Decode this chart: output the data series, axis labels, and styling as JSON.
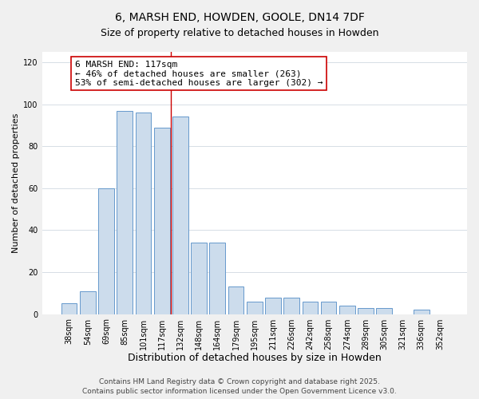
{
  "title": "6, MARSH END, HOWDEN, GOOLE, DN14 7DF",
  "subtitle": "Size of property relative to detached houses in Howden",
  "xlabel": "Distribution of detached houses by size in Howden",
  "ylabel": "Number of detached properties",
  "categories": [
    "38sqm",
    "54sqm",
    "69sqm",
    "85sqm",
    "101sqm",
    "117sqm",
    "132sqm",
    "148sqm",
    "164sqm",
    "179sqm",
    "195sqm",
    "211sqm",
    "226sqm",
    "242sqm",
    "258sqm",
    "274sqm",
    "289sqm",
    "305sqm",
    "321sqm",
    "336sqm",
    "352sqm"
  ],
  "values": [
    5,
    11,
    60,
    97,
    96,
    89,
    94,
    34,
    34,
    13,
    6,
    8,
    8,
    6,
    6,
    4,
    3,
    3,
    0,
    2,
    0
  ],
  "bar_color": "#ccdcec",
  "bar_edge_color": "#6699cc",
  "highlight_index": 5,
  "highlight_line_color": "#cc0000",
  "annotation_text": "6 MARSH END: 117sqm\n← 46% of detached houses are smaller (263)\n53% of semi-detached houses are larger (302) →",
  "annotation_box_color": "#ffffff",
  "annotation_box_edge_color": "#cc0000",
  "ylim": [
    0,
    125
  ],
  "yticks": [
    0,
    20,
    40,
    60,
    80,
    100,
    120
  ],
  "background_color": "#f0f0f0",
  "plot_background_color": "#ffffff",
  "footer_line1": "Contains HM Land Registry data © Crown copyright and database right 2025.",
  "footer_line2": "Contains public sector information licensed under the Open Government Licence v3.0.",
  "title_fontsize": 10,
  "subtitle_fontsize": 9,
  "xlabel_fontsize": 9,
  "ylabel_fontsize": 8,
  "tick_fontsize": 7,
  "footer_fontsize": 6.5,
  "annotation_fontsize": 8
}
